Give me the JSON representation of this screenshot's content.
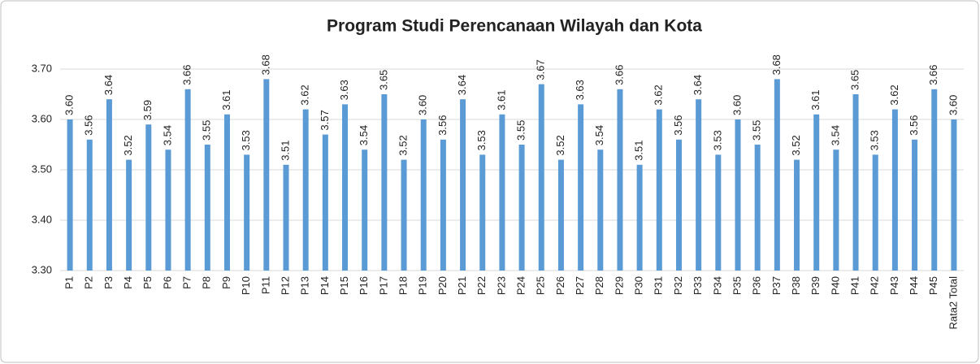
{
  "chart_data": {
    "type": "bar",
    "title": "Program Studi Perencanaan Wilayah dan Kota",
    "categories": [
      "P1",
      "P2",
      "P3",
      "P4",
      "P5",
      "P6",
      "P7",
      "P8",
      "P9",
      "P10",
      "P11",
      "P12",
      "P13",
      "P14",
      "P15",
      "P16",
      "P17",
      "P18",
      "P19",
      "P20",
      "P21",
      "P22",
      "P23",
      "P24",
      "P25",
      "P26",
      "P27",
      "P28",
      "P29",
      "P30",
      "P31",
      "P32",
      "P33",
      "P34",
      "P35",
      "P36",
      "P37",
      "P38",
      "P39",
      "P40",
      "P41",
      "P42",
      "P43",
      "P44",
      "P45",
      "Rata2 Total"
    ],
    "values": [
      3.6,
      3.56,
      3.64,
      3.52,
      3.59,
      3.54,
      3.66,
      3.55,
      3.61,
      3.53,
      3.68,
      3.51,
      3.62,
      3.57,
      3.63,
      3.54,
      3.65,
      3.52,
      3.6,
      3.56,
      3.64,
      3.53,
      3.61,
      3.55,
      3.67,
      3.52,
      3.63,
      3.54,
      3.66,
      3.51,
      3.62,
      3.56,
      3.64,
      3.53,
      3.6,
      3.55,
      3.68,
      3.52,
      3.61,
      3.54,
      3.65,
      3.53,
      3.62,
      3.56,
      3.66,
      3.6
    ],
    "value_labels": [
      "3.60",
      "3.56",
      "3.64",
      "3.52",
      "3.59",
      "3.54",
      "3.66",
      "3.55",
      "3.61",
      "3.53",
      "3.68",
      "3.51",
      "3.62",
      "3.57",
      "3.63",
      "3.54",
      "3.65",
      "3.52",
      "3.60",
      "3.56",
      "3.64",
      "3.53",
      "3.61",
      "3.55",
      "3.67",
      "3.52",
      "3.63",
      "3.54",
      "3.66",
      "3.51",
      "3.62",
      "3.56",
      "3.64",
      "3.53",
      "3.60",
      "3.55",
      "3.68",
      "3.52",
      "3.61",
      "3.54",
      "3.65",
      "3.53",
      "3.62",
      "3.56",
      "3.66",
      "3.60"
    ],
    "color": "#5b9bd5",
    "ylim": [
      3.3,
      3.7
    ],
    "yticks": [
      {
        "value": 3.3,
        "label": "3.30"
      },
      {
        "value": 3.4,
        "label": "3.40"
      },
      {
        "value": 3.5,
        "label": "3.50"
      },
      {
        "value": 3.6,
        "label": "3.60"
      },
      {
        "value": 3.7,
        "label": "3.70"
      }
    ],
    "grid": true
  }
}
